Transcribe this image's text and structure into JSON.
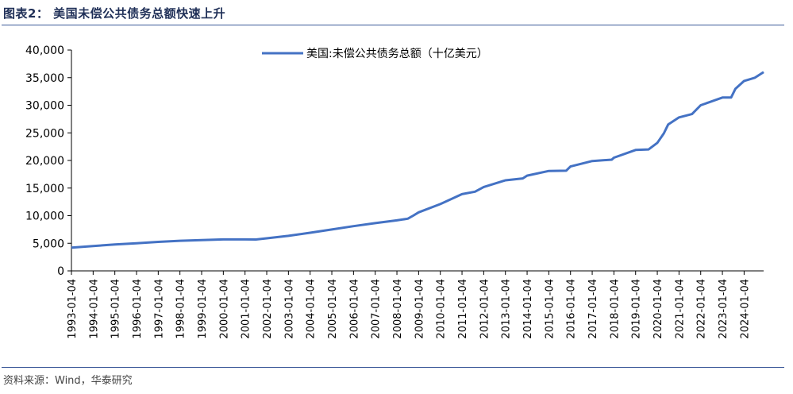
{
  "header": {
    "title": "图表2：  美国未偿公共债务总额快速上升"
  },
  "footer": {
    "source": "资料来源：Wind，华泰研究"
  },
  "colors": {
    "series": "#4472c4",
    "title": "#1f2f57",
    "rule": "#3b5998"
  },
  "chart_data": {
    "type": "line",
    "title": "",
    "xlabel": "",
    "ylabel": "",
    "legend_position": "top-center",
    "grid": false,
    "x_range": [
      1993.0,
      2024.9
    ],
    "ylim": [
      0,
      40000
    ],
    "y_ticks": [
      0,
      5000,
      10000,
      15000,
      20000,
      25000,
      30000,
      35000,
      40000
    ],
    "y_tick_labels": [
      "0",
      "5,000",
      "10,000",
      "15,000",
      "20,000",
      "25,000",
      "30,000",
      "35,000",
      "40,000"
    ],
    "x_tick_labels": [
      "1993-01-04",
      "1994-01-04",
      "1995-01-04",
      "1996-01-04",
      "1997-01-04",
      "1998-01-04",
      "1999-01-04",
      "2000-01-04",
      "2001-01-04",
      "2002-01-04",
      "2003-01-04",
      "2004-01-04",
      "2005-01-04",
      "2006-01-04",
      "2007-01-04",
      "2008-01-04",
      "2009-01-04",
      "2010-01-04",
      "2011-01-04",
      "2012-01-04",
      "2013-01-04",
      "2014-01-04",
      "2015-01-04",
      "2016-01-04",
      "2017-01-04",
      "2018-01-04",
      "2019-01-04",
      "2020-01-04",
      "2021-01-04",
      "2022-01-04",
      "2023-01-04",
      "2024-01-04"
    ],
    "series": [
      {
        "name": "美国:未偿公共债务总额（十亿美元）",
        "points": [
          [
            1993.0,
            4200
          ],
          [
            1994.0,
            4500
          ],
          [
            1995.0,
            4780
          ],
          [
            1996.0,
            5000
          ],
          [
            1997.0,
            5250
          ],
          [
            1998.0,
            5450
          ],
          [
            1999.0,
            5580
          ],
          [
            2000.0,
            5700
          ],
          [
            2001.0,
            5700
          ],
          [
            2001.5,
            5680
          ],
          [
            2002.0,
            5900
          ],
          [
            2003.0,
            6350
          ],
          [
            2004.0,
            6900
          ],
          [
            2005.0,
            7500
          ],
          [
            2006.0,
            8100
          ],
          [
            2007.0,
            8650
          ],
          [
            2008.0,
            9150
          ],
          [
            2008.5,
            9450
          ],
          [
            2008.75,
            10000
          ],
          [
            2009.0,
            10600
          ],
          [
            2010.0,
            12100
          ],
          [
            2011.0,
            13900
          ],
          [
            2011.6,
            14340
          ],
          [
            2012.0,
            15200
          ],
          [
            2013.0,
            16400
          ],
          [
            2013.8,
            16750
          ],
          [
            2014.0,
            17250
          ],
          [
            2015.0,
            18100
          ],
          [
            2015.8,
            18150
          ],
          [
            2016.0,
            18900
          ],
          [
            2017.0,
            19900
          ],
          [
            2017.9,
            20150
          ],
          [
            2018.0,
            20500
          ],
          [
            2019.0,
            21900
          ],
          [
            2019.6,
            22000
          ],
          [
            2020.0,
            23200
          ],
          [
            2020.3,
            24900
          ],
          [
            2020.5,
            26500
          ],
          [
            2021.0,
            27800
          ],
          [
            2021.6,
            28400
          ],
          [
            2022.0,
            30000
          ],
          [
            2023.0,
            31400
          ],
          [
            2023.4,
            31400
          ],
          [
            2023.6,
            33000
          ],
          [
            2024.0,
            34400
          ],
          [
            2024.5,
            35000
          ],
          [
            2024.9,
            36000
          ]
        ]
      }
    ]
  }
}
